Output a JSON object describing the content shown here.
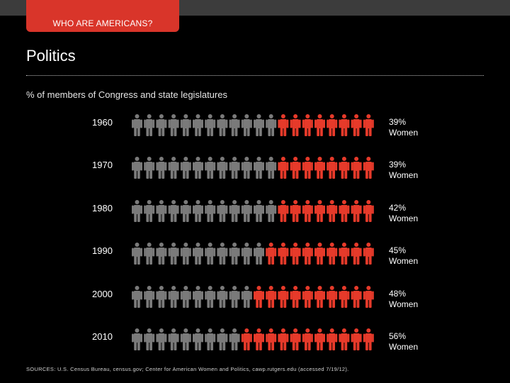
{
  "header": {
    "section_tab": "WHO ARE AMERICANS?",
    "title": "Politics",
    "subtitle": "% of members of Congress and state legislatures"
  },
  "colors": {
    "women": "#e63a2a",
    "men": "#7a7a7a",
    "tab": "#d9352a",
    "topbar": "#3c3c3c"
  },
  "icon": "person-icon",
  "chart_data": {
    "type": "pictograph",
    "figures_per_row": 20,
    "rows": [
      {
        "year": "1960",
        "value": 39,
        "percent_label": "39%",
        "group_label": "Women"
      },
      {
        "year": "1970",
        "value": 39,
        "percent_label": "39%",
        "group_label": "Women"
      },
      {
        "year": "1980",
        "value": 42,
        "percent_label": "42%",
        "group_label": "Women"
      },
      {
        "year": "1990",
        "value": 45,
        "percent_label": "45%",
        "group_label": "Women"
      },
      {
        "year": "2000",
        "value": 48,
        "percent_label": "48%",
        "group_label": "Women"
      },
      {
        "year": "2010",
        "value": 56,
        "percent_label": "56%",
        "group_label": "Women"
      }
    ]
  },
  "source": "SOURCES: U.S. Census Bureau, census.gov; Center for American Women and Politics, cawp.rutgers.edu (accessed 7/19/12)."
}
